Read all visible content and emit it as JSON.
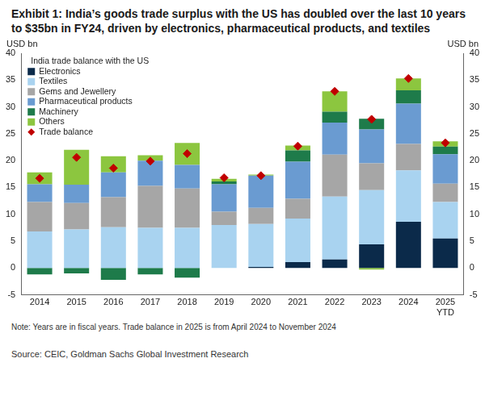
{
  "chart_data": {
    "type": "bar",
    "title": "Exhibit 1: India’s goods trade surplus with the US has doubled over the last 10 years to $35bn in FY24, driven by electronics, pharmaceutical products, and textiles",
    "y_label": "USD bn",
    "y2_label": "USD bn",
    "legend_title": "India trade balance with the US",
    "note": "Note: Years are in fiscal years. Trade balance in 2025 is from April 2024 to November 2024",
    "source": "Source: CEIC, Goldman Sachs Global Investment Research",
    "categories": [
      "2014",
      "2015",
      "2016",
      "2017",
      "2018",
      "2019",
      "2020",
      "2021",
      "2022",
      "2023",
      "2024",
      [
        "2025",
        "YTD"
      ]
    ],
    "stacked": true,
    "grid": false,
    "legend": "upper left",
    "series": [
      {
        "name": "Electronics",
        "color": "#0b2a4a",
        "values": [
          0,
          0,
          0,
          0,
          0,
          0,
          0.2,
          1.1,
          1.6,
          4.4,
          8.6,
          5.5
        ]
      },
      {
        "name": "Textiles",
        "color": "#a9d3f0",
        "values": [
          6.8,
          7.2,
          7.6,
          7.5,
          7.5,
          8.0,
          8.0,
          8.1,
          11.7,
          10.1,
          9.6,
          6.8
        ]
      },
      {
        "name": "Gems and Jewellery",
        "color": "#a6a6a6",
        "values": [
          5.5,
          4.9,
          5.6,
          7.8,
          7.3,
          2.5,
          3.0,
          3.7,
          7.8,
          5.0,
          4.9,
          3.4
        ]
      },
      {
        "name": "Pharmaceutical products",
        "color": "#6a9bd1",
        "values": [
          3.3,
          3.4,
          4.6,
          4.7,
          4.4,
          5.1,
          6.0,
          6.9,
          6.0,
          6.3,
          7.5,
          5.5
        ]
      },
      {
        "name": "Machinery",
        "color": "#1e7b4a",
        "values": [
          -1.2,
          -1.0,
          -2.2,
          -1.2,
          -1.8,
          0.5,
          0,
          2.1,
          2.0,
          2.0,
          2.5,
          1.4
        ]
      },
      {
        "name": "Others",
        "color": "#8cc63f",
        "values": [
          2.2,
          6.5,
          3.0,
          1.0,
          4.1,
          0.5,
          0.2,
          0.9,
          3.8,
          -0.3,
          2.2,
          1.0
        ]
      },
      {
        "name": "Trade balance",
        "type": "scatter",
        "marker": "diamond",
        "color": "#c00000",
        "values": [
          16.7,
          20.6,
          18.6,
          19.9,
          21.3,
          16.8,
          17.2,
          22.7,
          32.9,
          27.7,
          35.3,
          23.3
        ]
      }
    ],
    "ylim": [
      -5,
      40
    ],
    "yticks": [
      -5,
      0,
      5,
      10,
      15,
      20,
      25,
      30,
      35,
      40
    ],
    "y2lim": [
      -5,
      40
    ],
    "y2ticks": [
      -5,
      0,
      5,
      10,
      15,
      20,
      25,
      30,
      35,
      40
    ]
  }
}
